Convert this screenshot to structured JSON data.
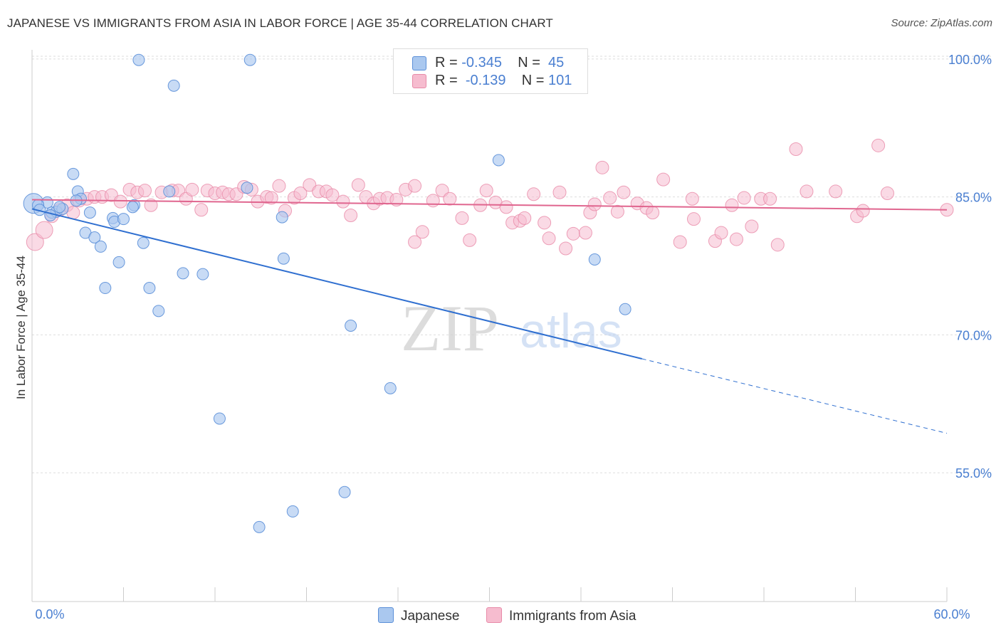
{
  "title": "JAPANESE VS IMMIGRANTS FROM ASIA IN LABOR FORCE | AGE 35-44 CORRELATION CHART",
  "source": "Source: ZipAtlas.com",
  "watermark": {
    "zip": "ZIP",
    "atlas": "atlas"
  },
  "legend": {
    "japanese": {
      "r_label": "R =",
      "r_value": "-0.345",
      "n_label": "N =",
      "n_value": "45"
    },
    "asia": {
      "r_label": "R =",
      "r_value": "-0.139",
      "n_label": "N =",
      "n_value": "101"
    }
  },
  "colors": {
    "japanese_fill": "#aac8ef",
    "japanese_stroke": "#5b8fd8",
    "japanese_line": "#2f6fd0",
    "asia_fill": "#f6bccf",
    "asia_stroke": "#e88aa8",
    "asia_line": "#e0668f",
    "accent_text": "#4a7fd1",
    "grid": "#dddddd"
  },
  "chart_data": {
    "type": "scatter",
    "xlabel": "",
    "ylabel": "In Labor Force | Age 35-44",
    "xlim": [
      0,
      60
    ],
    "ylim": [
      41,
      101
    ],
    "x_tick_labels": [
      {
        "value": 0,
        "label": "0.0%"
      },
      {
        "value": 60,
        "label": "60.0%"
      }
    ],
    "y_tick_labels": [
      {
        "value": 100,
        "label": "100.0%"
      },
      {
        "value": 85,
        "label": "85.0%"
      },
      {
        "value": 70,
        "label": "70.0%"
      },
      {
        "value": 55,
        "label": "55.0%"
      }
    ],
    "x_minor_ticks": [
      0,
      6,
      12,
      18,
      24,
      30,
      36,
      42,
      48,
      54,
      60
    ],
    "grid": true,
    "series": [
      {
        "name": "Japanese",
        "color": "#aac8ef",
        "points": [
          [
            0.1,
            84.3
          ],
          [
            1.0,
            84.4
          ],
          [
            0.4,
            84.1
          ],
          [
            1.3,
            83.3
          ],
          [
            1.6,
            83.4
          ],
          [
            2.7,
            87.5
          ],
          [
            3.0,
            85.6
          ],
          [
            3.2,
            84.8
          ],
          [
            3.8,
            83.3
          ],
          [
            3.5,
            81.1
          ],
          [
            4.1,
            80.6
          ],
          [
            4.5,
            79.6
          ],
          [
            5.3,
            82.7
          ],
          [
            5.4,
            82.3
          ],
          [
            6.0,
            82.6
          ],
          [
            5.7,
            77.9
          ],
          [
            4.8,
            75.1
          ],
          [
            6.7,
            84.1
          ],
          [
            7.0,
            99.9
          ],
          [
            7.3,
            80.0
          ],
          [
            7.7,
            75.1
          ],
          [
            8.3,
            72.6
          ],
          [
            9.3,
            97.1
          ],
          [
            9.0,
            85.6
          ],
          [
            9.9,
            76.7
          ],
          [
            11.2,
            76.6
          ],
          [
            12.3,
            60.9
          ],
          [
            14.1,
            86.0
          ],
          [
            14.3,
            99.9
          ],
          [
            14.9,
            49.1
          ],
          [
            16.4,
            82.8
          ],
          [
            16.5,
            78.3
          ],
          [
            17.1,
            50.8
          ],
          [
            20.5,
            52.9
          ],
          [
            20.9,
            71.0
          ],
          [
            23.5,
            64.2
          ],
          [
            30.6,
            89.0
          ],
          [
            36.9,
            78.2
          ],
          [
            38.9,
            72.8
          ],
          [
            1.2,
            83.0
          ],
          [
            2.0,
            83.7
          ],
          [
            0.5,
            83.6
          ],
          [
            6.6,
            83.9
          ],
          [
            2.9,
            84.6
          ],
          [
            1.8,
            83.9
          ]
        ]
      },
      {
        "name": "Immigrants from Asia",
        "color": "#f6bccf",
        "points": [
          [
            0.2,
            80.1
          ],
          [
            0.8,
            81.4
          ],
          [
            1.3,
            82.9
          ],
          [
            1.8,
            83.6
          ],
          [
            2.3,
            84.1
          ],
          [
            2.7,
            83.3
          ],
          [
            3.1,
            84.6
          ],
          [
            3.6,
            84.8
          ],
          [
            4.1,
            85.0
          ],
          [
            4.6,
            85.0
          ],
          [
            5.2,
            85.2
          ],
          [
            5.8,
            84.5
          ],
          [
            6.4,
            85.8
          ],
          [
            6.9,
            85.5
          ],
          [
            7.4,
            85.7
          ],
          [
            7.8,
            84.1
          ],
          [
            8.5,
            85.5
          ],
          [
            9.2,
            85.7
          ],
          [
            9.6,
            85.7
          ],
          [
            10.1,
            84.8
          ],
          [
            10.5,
            85.8
          ],
          [
            11.1,
            83.6
          ],
          [
            11.5,
            85.7
          ],
          [
            12.0,
            85.4
          ],
          [
            12.5,
            85.5
          ],
          [
            12.9,
            85.3
          ],
          [
            13.4,
            85.3
          ],
          [
            13.9,
            86.1
          ],
          [
            14.4,
            85.8
          ],
          [
            14.8,
            84.5
          ],
          [
            15.4,
            85.0
          ],
          [
            15.7,
            84.9
          ],
          [
            16.2,
            86.2
          ],
          [
            16.6,
            83.5
          ],
          [
            17.2,
            84.9
          ],
          [
            17.6,
            85.4
          ],
          [
            18.2,
            86.3
          ],
          [
            18.8,
            85.6
          ],
          [
            19.3,
            85.6
          ],
          [
            19.7,
            85.2
          ],
          [
            20.4,
            84.5
          ],
          [
            20.9,
            83.0
          ],
          [
            21.4,
            86.3
          ],
          [
            21.9,
            85.0
          ],
          [
            22.4,
            84.3
          ],
          [
            22.8,
            84.8
          ],
          [
            23.3,
            84.9
          ],
          [
            23.9,
            84.7
          ],
          [
            24.5,
            85.8
          ],
          [
            25.1,
            86.2
          ],
          [
            25.6,
            81.2
          ],
          [
            25.1,
            80.1
          ],
          [
            26.3,
            84.6
          ],
          [
            26.9,
            85.7
          ],
          [
            27.4,
            84.8
          ],
          [
            28.2,
            82.7
          ],
          [
            28.7,
            80.3
          ],
          [
            29.4,
            84.1
          ],
          [
            29.8,
            85.7
          ],
          [
            30.4,
            84.4
          ],
          [
            31.1,
            83.9
          ],
          [
            31.5,
            82.2
          ],
          [
            32.0,
            82.4
          ],
          [
            32.3,
            82.7
          ],
          [
            32.9,
            85.3
          ],
          [
            33.6,
            82.2
          ],
          [
            33.9,
            80.5
          ],
          [
            34.6,
            85.5
          ],
          [
            35.0,
            79.4
          ],
          [
            35.5,
            81.0
          ],
          [
            36.3,
            81.1
          ],
          [
            36.6,
            83.3
          ],
          [
            36.9,
            84.2
          ],
          [
            37.4,
            88.2
          ],
          [
            37.9,
            84.9
          ],
          [
            38.4,
            83.4
          ],
          [
            38.8,
            85.5
          ],
          [
            39.7,
            84.3
          ],
          [
            40.3,
            83.8
          ],
          [
            40.7,
            83.3
          ],
          [
            41.4,
            86.9
          ],
          [
            42.5,
            80.1
          ],
          [
            43.3,
            84.8
          ],
          [
            43.4,
            82.6
          ],
          [
            44.8,
            80.2
          ],
          [
            45.2,
            81.1
          ],
          [
            45.9,
            84.1
          ],
          [
            46.2,
            80.4
          ],
          [
            46.7,
            84.9
          ],
          [
            47.2,
            81.8
          ],
          [
            47.8,
            84.8
          ],
          [
            48.4,
            84.8
          ],
          [
            48.9,
            79.8
          ],
          [
            50.1,
            90.2
          ],
          [
            50.8,
            85.6
          ],
          [
            52.7,
            85.6
          ],
          [
            54.1,
            82.9
          ],
          [
            54.5,
            83.5
          ],
          [
            55.5,
            90.6
          ],
          [
            56.1,
            85.4
          ],
          [
            60.0,
            83.6
          ]
        ]
      }
    ],
    "trendlines": [
      {
        "series": "Japanese",
        "from": [
          0,
          83.7
        ],
        "to": [
          40,
          67.4
        ],
        "dashed_to": [
          60,
          59.3
        ]
      },
      {
        "series": "Immigrants from Asia",
        "from": [
          0,
          84.7
        ],
        "to": [
          60,
          83.6
        ]
      }
    ]
  },
  "bottom_legend": [
    "Japanese",
    "Immigrants from Asia"
  ]
}
